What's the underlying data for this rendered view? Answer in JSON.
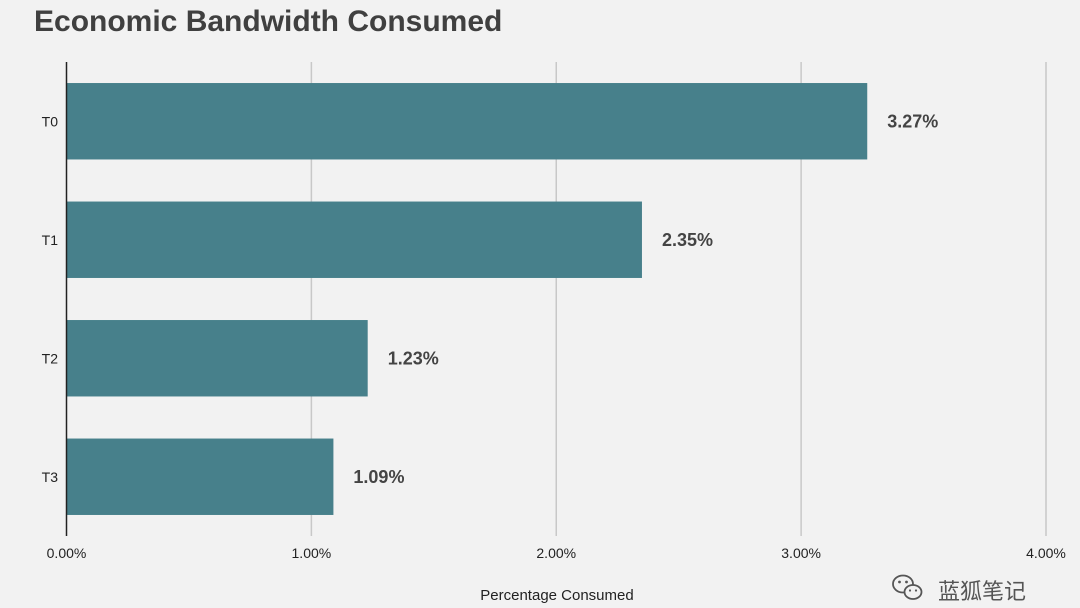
{
  "chart_data": {
    "type": "bar",
    "orientation": "horizontal",
    "title": "Economic Bandwidth Consumed",
    "categories": [
      "T0",
      "T1",
      "T2",
      "T3"
    ],
    "values": [
      3.27,
      2.35,
      1.23,
      1.09
    ],
    "data_labels": [
      "3.27%",
      "2.35%",
      "1.23%",
      "1.09%"
    ],
    "xlabel": "Percentage Consumed",
    "ylabel": "",
    "xlim": [
      0,
      4
    ],
    "xticks": [
      0,
      1,
      2,
      3,
      4
    ],
    "xtick_labels": [
      "0.00%",
      "1.00%",
      "2.00%",
      "3.00%",
      "4.00%"
    ],
    "grid": true,
    "bar_color": "#47808b"
  },
  "watermark": {
    "text": "蓝狐笔记",
    "icon": "wechat-icon"
  }
}
